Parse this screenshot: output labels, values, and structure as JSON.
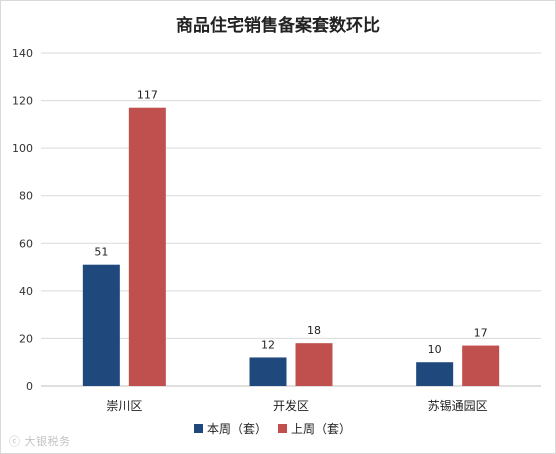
{
  "chart_data": {
    "type": "bar",
    "title": "商品住宅销售备案套数环比",
    "categories": [
      "崇川区",
      "开发区",
      "苏锡通园区"
    ],
    "series": [
      {
        "name": "本周（套）",
        "values": [
          51,
          12,
          10
        ],
        "color": "#1f497d"
      },
      {
        "name": "上周（套）",
        "values": [
          117,
          18,
          17
        ],
        "color": "#c0504d"
      }
    ],
    "ylim": [
      0,
      140
    ],
    "yticks": [
      0,
      20,
      40,
      60,
      80,
      100,
      120,
      140
    ],
    "grid": true,
    "legend": "bottom"
  },
  "watermark": {
    "text": "大银税务",
    "icon": "weibo-logo-icon"
  }
}
